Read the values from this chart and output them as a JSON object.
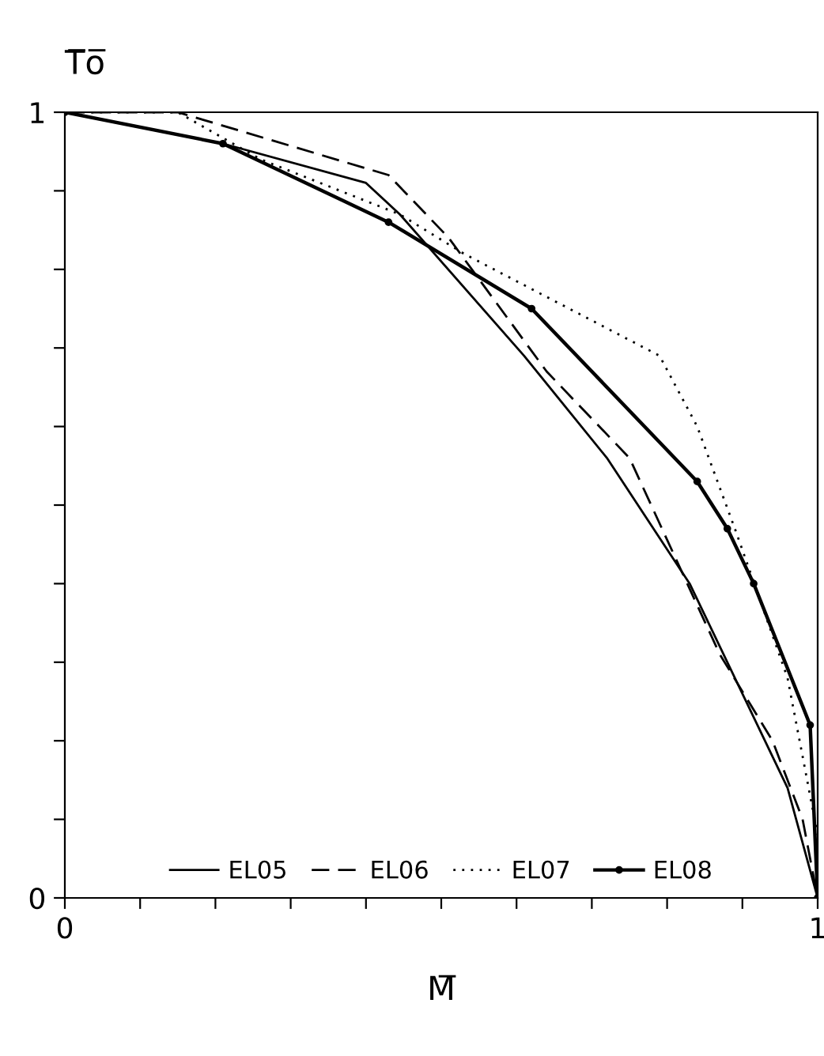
{
  "chart_data": {
    "type": "line",
    "xlabel": "M̅",
    "ylabel": "T̅o̅",
    "xlim": [
      0,
      1
    ],
    "ylim": [
      0,
      1
    ],
    "xticks": [
      0,
      {
        "value": 0.1,
        "label": null
      },
      {
        "value": 0.2,
        "label": null
      },
      {
        "value": 0.3,
        "label": null
      },
      {
        "value": 0.4,
        "label": null
      },
      {
        "value": 0.5,
        "label": null
      },
      {
        "value": 0.6,
        "label": null
      },
      {
        "value": 0.7,
        "label": null
      },
      {
        "value": 0.8,
        "label": null
      },
      {
        "value": 0.9,
        "label": null
      },
      1
    ],
    "yticks": [
      0,
      {
        "value": 0.1,
        "label": null
      },
      {
        "value": 0.2,
        "label": null
      },
      {
        "value": 0.3,
        "label": null
      },
      {
        "value": 0.4,
        "label": null
      },
      {
        "value": 0.5,
        "label": null
      },
      {
        "value": 0.6,
        "label": null
      },
      {
        "value": 0.7,
        "label": null
      },
      {
        "value": 0.8,
        "label": null
      },
      {
        "value": 0.9,
        "label": null
      },
      1
    ],
    "grid": false,
    "legend": "bottom",
    "series": [
      {
        "name": "EL05",
        "color": "#000000",
        "line_style": "solid",
        "marker": "none",
        "x": [
          0,
          0.21,
          0.4,
          0.445,
          0.61,
          0.72,
          0.83,
          0.94,
          0.96,
          1.0
        ],
        "values": [
          1.0,
          0.96,
          0.91,
          0.87,
          0.69,
          0.56,
          0.4,
          0.18,
          0.14,
          0.0
        ]
      },
      {
        "name": "EL06",
        "color": "#000000",
        "line_style": "dashed",
        "marker": "none",
        "x": [
          0,
          0.15,
          0.43,
          0.51,
          0.64,
          0.75,
          0.87,
          0.94,
          0.98,
          1.0
        ],
        "values": [
          1.0,
          1.0,
          0.92,
          0.84,
          0.67,
          0.56,
          0.31,
          0.2,
          0.1,
          0.0
        ]
      },
      {
        "name": "EL07",
        "color": "#000000",
        "line_style": "dotted",
        "marker": "none",
        "x": [
          0,
          0.15,
          0.26,
          0.445,
          0.53,
          0.79,
          0.84,
          0.89,
          0.96,
          1.0
        ],
        "values": [
          1.0,
          1.0,
          0.94,
          0.87,
          0.82,
          0.69,
          0.6,
          0.47,
          0.28,
          0.08
        ]
      },
      {
        "name": "EL08",
        "color": "#000000",
        "line_style": "solid",
        "marker": "circle",
        "x": [
          0,
          0.21,
          0.43,
          0.62,
          0.84,
          0.88,
          0.915,
          0.99,
          1.0
        ],
        "values": [
          1.0,
          0.96,
          0.86,
          0.75,
          0.53,
          0.47,
          0.4,
          0.22,
          0.0
        ]
      }
    ]
  }
}
